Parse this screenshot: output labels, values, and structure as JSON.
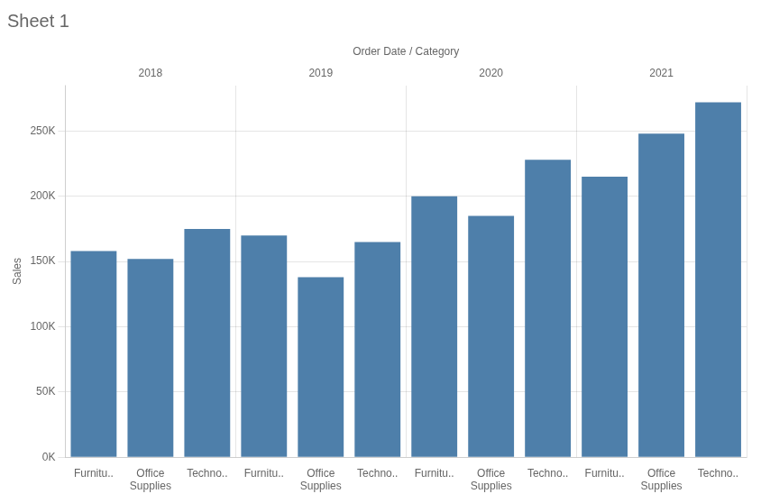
{
  "chart_data": {
    "type": "bar",
    "title": "Sheet 1",
    "xlabel": "Order Date / Category",
    "ylabel": "Sales",
    "groups": [
      "2018",
      "2019",
      "2020",
      "2021"
    ],
    "categories": [
      "Furnitu..",
      "Office Supplies",
      "Techno..",
      "Furnitu..",
      "Office Supplies",
      "Techno..",
      "Furnitu..",
      "Office Supplies",
      "Techno..",
      "Furnitu..",
      "Office Supplies",
      "Techno.."
    ],
    "values": [
      158000,
      152000,
      175000,
      170000,
      138000,
      165000,
      200000,
      185000,
      228000,
      215000,
      248000,
      272000
    ],
    "color": "#4e7faa",
    "ylim": [
      0,
      285000
    ],
    "yticks": [
      {
        "value": 0,
        "label": "0K"
      },
      {
        "value": 50000,
        "label": "50K"
      },
      {
        "value": 100000,
        "label": "100K"
      },
      {
        "value": 150000,
        "label": "150K"
      },
      {
        "value": 200000,
        "label": "200K"
      },
      {
        "value": 250000,
        "label": "250K"
      }
    ],
    "grid": true
  }
}
